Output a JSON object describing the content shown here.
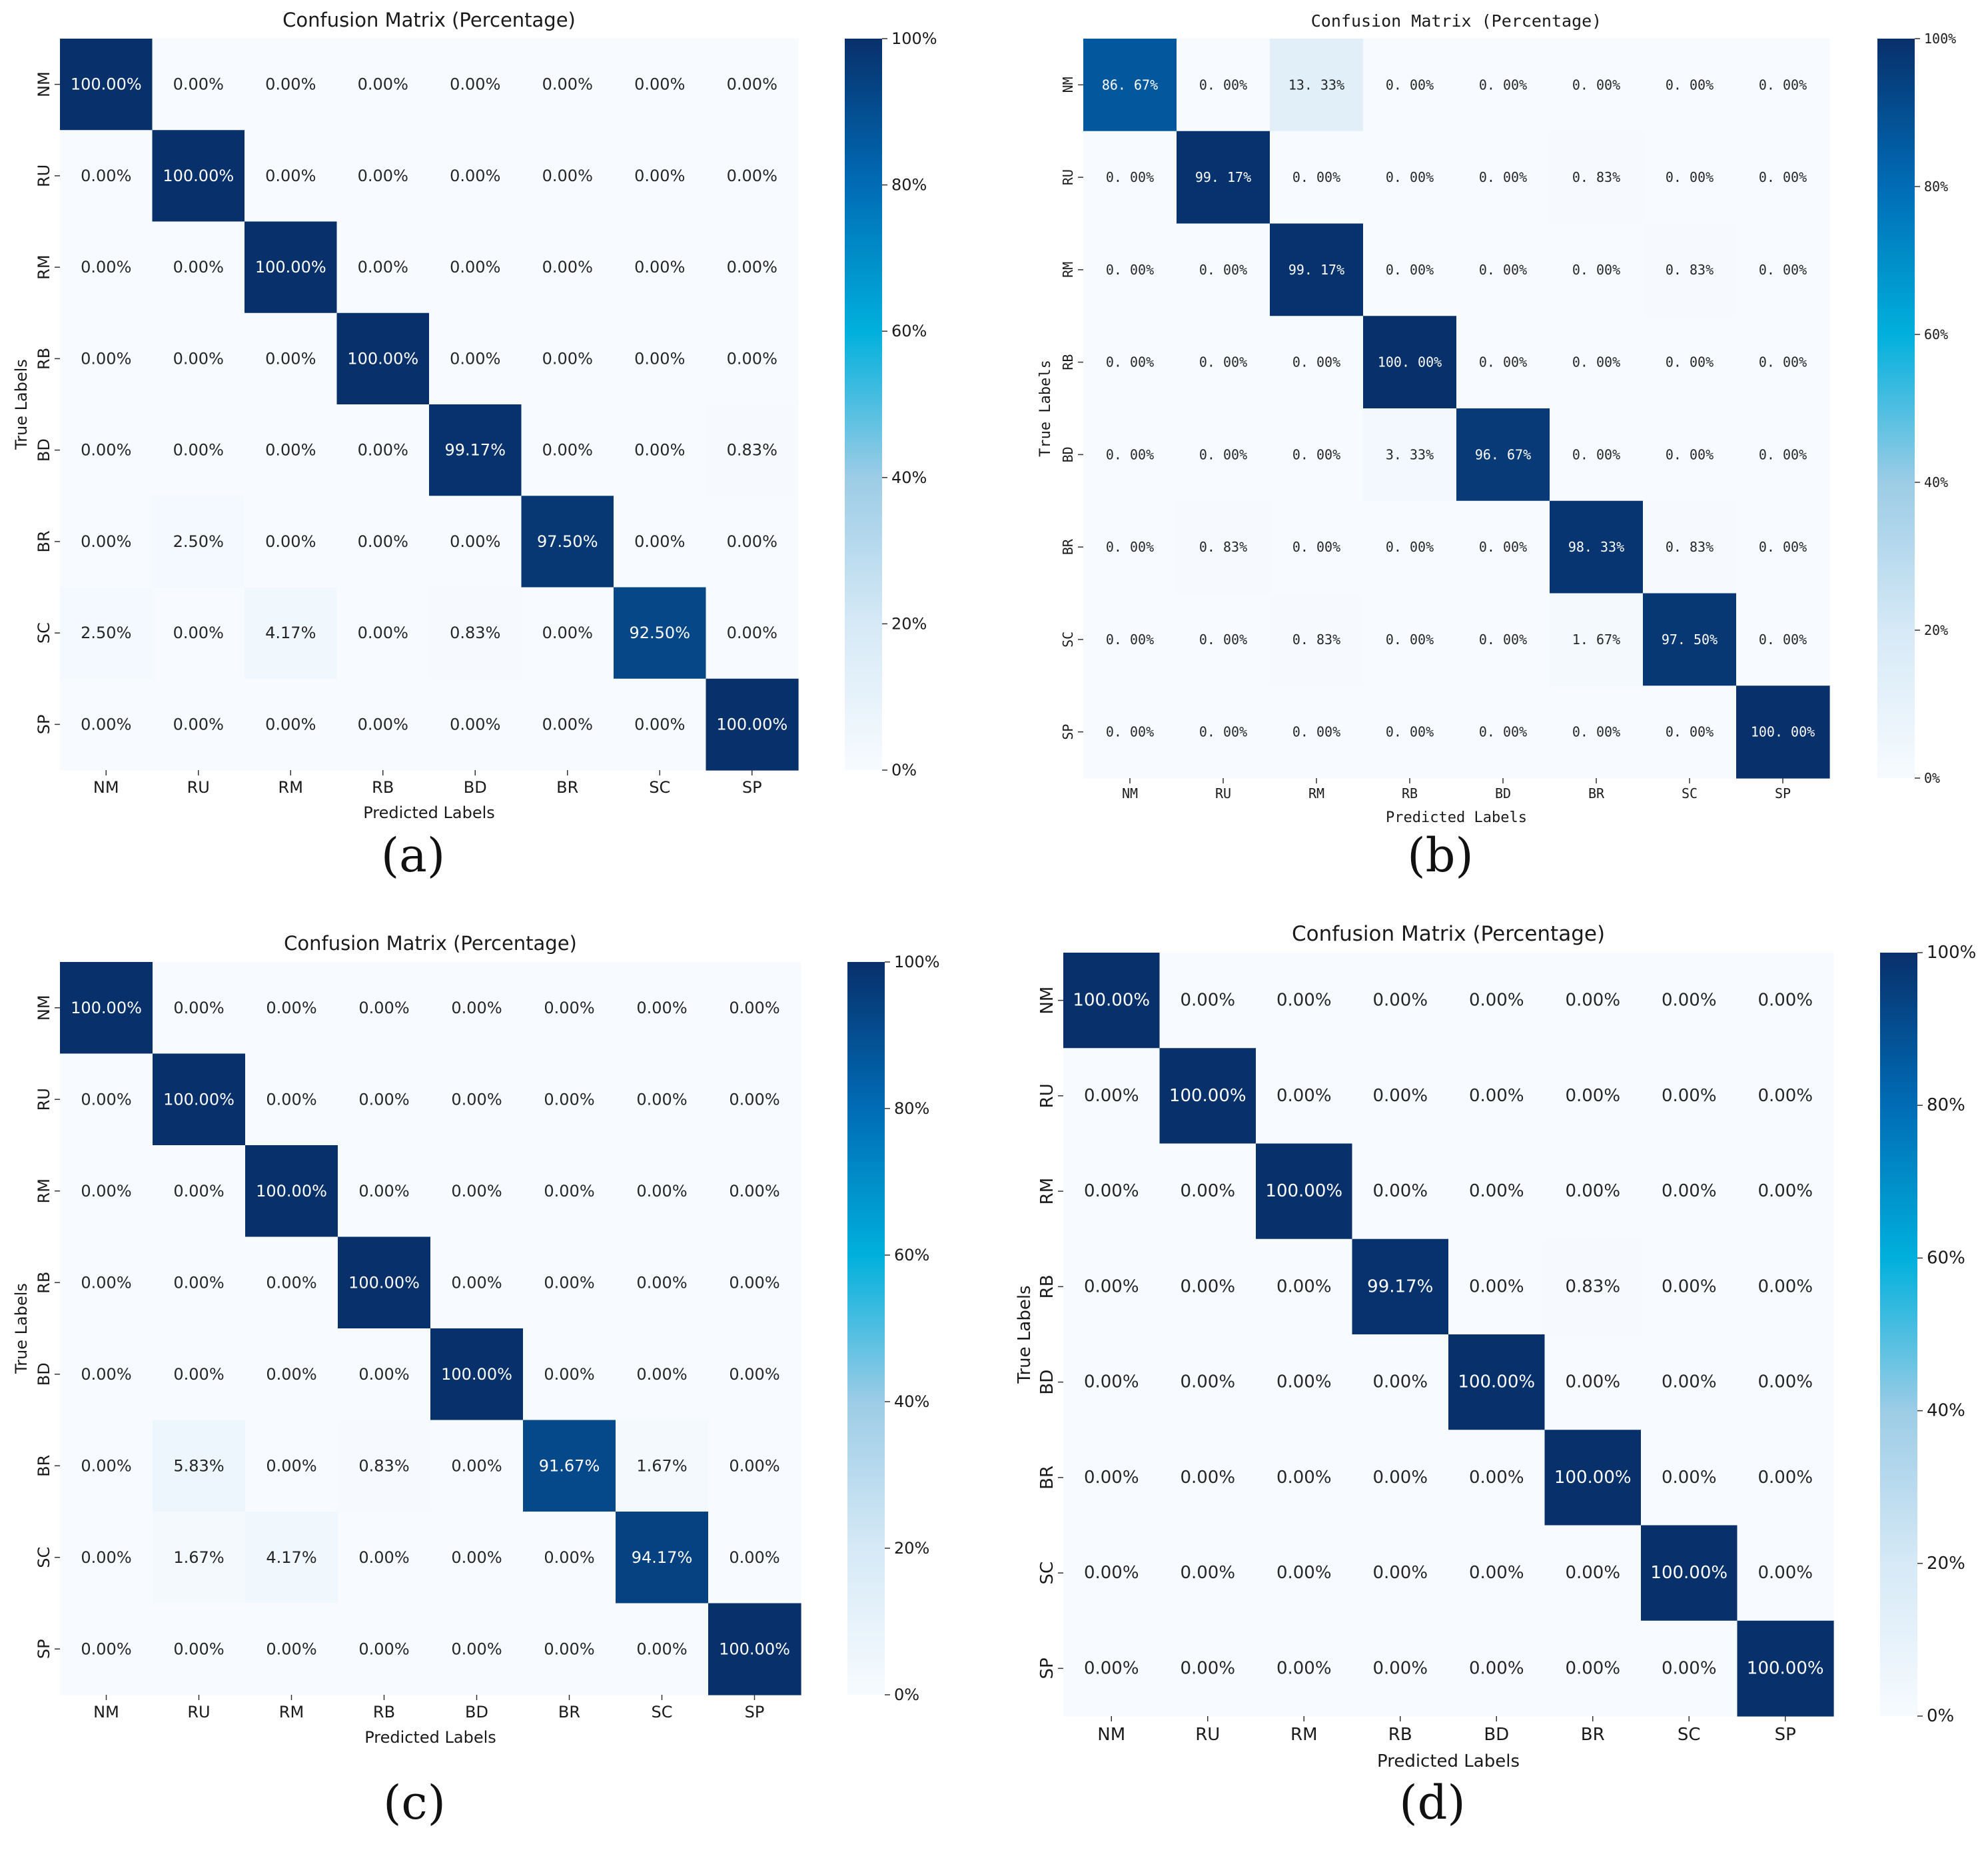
{
  "colors": {
    "cmap": [
      "#f7fbff",
      "#d6e9f6",
      "#9ccce6",
      "#00b0dc",
      "#006cb6",
      "#08306b"
    ],
    "text_dark": "#262626",
    "text_light": "#ffffff"
  },
  "chart_data": [
    {
      "type": "heatmap",
      "panel": "(a)",
      "title": "Confusion Matrix (Percentage)",
      "xlabel": "Predicted Labels",
      "ylabel": "True Labels",
      "x_categories": [
        "NM",
        "RU",
        "RM",
        "RB",
        "BD",
        "BR",
        "SC",
        "SP"
      ],
      "y_categories": [
        "NM",
        "RU",
        "RM",
        "RB",
        "BD",
        "BR",
        "SC",
        "SP"
      ],
      "colorbar": {
        "range": [
          0,
          100
        ],
        "ticks": [
          "0%",
          "20%",
          "40%",
          "60%",
          "80%",
          "100%"
        ]
      },
      "cell_labels": [
        [
          "100.00%",
          "0.00%",
          "0.00%",
          "0.00%",
          "0.00%",
          "0.00%",
          "0.00%",
          "0.00%"
        ],
        [
          "0.00%",
          "100.00%",
          "0.00%",
          "0.00%",
          "0.00%",
          "0.00%",
          "0.00%",
          "0.00%"
        ],
        [
          "0.00%",
          "0.00%",
          "100.00%",
          "0.00%",
          "0.00%",
          "0.00%",
          "0.00%",
          "0.00%"
        ],
        [
          "0.00%",
          "0.00%",
          "0.00%",
          "100.00%",
          "0.00%",
          "0.00%",
          "0.00%",
          "0.00%"
        ],
        [
          "0.00%",
          "0.00%",
          "0.00%",
          "0.00%",
          "99.17%",
          "0.00%",
          "0.00%",
          "0.83%"
        ],
        [
          "0.00%",
          "2.50%",
          "0.00%",
          "0.00%",
          "0.00%",
          "97.50%",
          "0.00%",
          "0.00%"
        ],
        [
          "2.50%",
          "0.00%",
          "4.17%",
          "0.00%",
          "0.83%",
          "0.00%",
          "92.50%",
          "0.00%"
        ],
        [
          "0.00%",
          "0.00%",
          "0.00%",
          "0.00%",
          "0.00%",
          "0.00%",
          "0.00%",
          "100.00%"
        ]
      ]
    },
    {
      "type": "heatmap",
      "panel": "(b)",
      "title": "Confusion Matrix (Percentage)",
      "xlabel": "Predicted Labels",
      "ylabel": "True Labels",
      "x_categories": [
        "NM",
        "RU",
        "RM",
        "RB",
        "BD",
        "BR",
        "SC",
        "SP"
      ],
      "y_categories": [
        "NM",
        "RU",
        "RM",
        "RB",
        "BD",
        "BR",
        "SC",
        "SP"
      ],
      "colorbar": {
        "range": [
          0,
          100
        ],
        "ticks": [
          "0%",
          "20%",
          "40%",
          "60%",
          "80%",
          "100%"
        ]
      },
      "cell_labels": [
        [
          "86. 67%",
          "0. 00%",
          "13. 33%",
          "0. 00%",
          "0. 00%",
          "0. 00%",
          "0. 00%",
          "0. 00%"
        ],
        [
          "0. 00%",
          "99. 17%",
          "0. 00%",
          "0. 00%",
          "0. 00%",
          "0. 83%",
          "0. 00%",
          "0. 00%"
        ],
        [
          "0. 00%",
          "0. 00%",
          "99. 17%",
          "0. 00%",
          "0. 00%",
          "0. 00%",
          "0. 83%",
          "0. 00%"
        ],
        [
          "0. 00%",
          "0. 00%",
          "0. 00%",
          "100. 00%",
          "0. 00%",
          "0. 00%",
          "0. 00%",
          "0. 00%"
        ],
        [
          "0. 00%",
          "0. 00%",
          "0. 00%",
          "3. 33%",
          "96. 67%",
          "0. 00%",
          "0. 00%",
          "0. 00%"
        ],
        [
          "0. 00%",
          "0. 83%",
          "0. 00%",
          "0. 00%",
          "0. 00%",
          "98. 33%",
          "0. 83%",
          "0. 00%"
        ],
        [
          "0. 00%",
          "0. 00%",
          "0. 83%",
          "0. 00%",
          "0. 00%",
          "1. 67%",
          "97. 50%",
          "0. 00%"
        ],
        [
          "0. 00%",
          "0. 00%",
          "0. 00%",
          "0. 00%",
          "0. 00%",
          "0. 00%",
          "0. 00%",
          "100. 00%"
        ]
      ]
    },
    {
      "type": "heatmap",
      "panel": "(c)",
      "title": "Confusion Matrix (Percentage)",
      "xlabel": "Predicted Labels",
      "ylabel": "True Labels",
      "x_categories": [
        "NM",
        "RU",
        "RM",
        "RB",
        "BD",
        "BR",
        "SC",
        "SP"
      ],
      "y_categories": [
        "NM",
        "RU",
        "RM",
        "RB",
        "BD",
        "BR",
        "SC",
        "SP"
      ],
      "colorbar": {
        "range": [
          0,
          100
        ],
        "ticks": [
          "0%",
          "20%",
          "40%",
          "60%",
          "80%",
          "100%"
        ]
      },
      "cell_labels": [
        [
          "100.00%",
          "0.00%",
          "0.00%",
          "0.00%",
          "0.00%",
          "0.00%",
          "0.00%",
          "0.00%"
        ],
        [
          "0.00%",
          "100.00%",
          "0.00%",
          "0.00%",
          "0.00%",
          "0.00%",
          "0.00%",
          "0.00%"
        ],
        [
          "0.00%",
          "0.00%",
          "100.00%",
          "0.00%",
          "0.00%",
          "0.00%",
          "0.00%",
          "0.00%"
        ],
        [
          "0.00%",
          "0.00%",
          "0.00%",
          "100.00%",
          "0.00%",
          "0.00%",
          "0.00%",
          "0.00%"
        ],
        [
          "0.00%",
          "0.00%",
          "0.00%",
          "0.00%",
          "100.00%",
          "0.00%",
          "0.00%",
          "0.00%"
        ],
        [
          "0.00%",
          "5.83%",
          "0.00%",
          "0.83%",
          "0.00%",
          "91.67%",
          "1.67%",
          "0.00%"
        ],
        [
          "0.00%",
          "1.67%",
          "4.17%",
          "0.00%",
          "0.00%",
          "0.00%",
          "94.17%",
          "0.00%"
        ],
        [
          "0.00%",
          "0.00%",
          "0.00%",
          "0.00%",
          "0.00%",
          "0.00%",
          "0.00%",
          "100.00%"
        ]
      ]
    },
    {
      "type": "heatmap",
      "panel": "(d)",
      "title": "Confusion Matrix (Percentage)",
      "xlabel": "Predicted Labels",
      "ylabel": "True Labels",
      "x_categories": [
        "NM",
        "RU",
        "RM",
        "RB",
        "BD",
        "BR",
        "SC",
        "SP"
      ],
      "y_categories": [
        "NM",
        "RU",
        "RM",
        "RB",
        "BD",
        "BR",
        "SC",
        "SP"
      ],
      "colorbar": {
        "range": [
          0,
          100
        ],
        "ticks": [
          "0%",
          "20%",
          "40%",
          "60%",
          "80%",
          "100%"
        ]
      },
      "cell_labels": [
        [
          "100.00%",
          "0.00%",
          "0.00%",
          "0.00%",
          "0.00%",
          "0.00%",
          "0.00%",
          "0.00%"
        ],
        [
          "0.00%",
          "100.00%",
          "0.00%",
          "0.00%",
          "0.00%",
          "0.00%",
          "0.00%",
          "0.00%"
        ],
        [
          "0.00%",
          "0.00%",
          "100.00%",
          "0.00%",
          "0.00%",
          "0.00%",
          "0.00%",
          "0.00%"
        ],
        [
          "0.00%",
          "0.00%",
          "0.00%",
          "99.17%",
          "0.00%",
          "0.83%",
          "0.00%",
          "0.00%"
        ],
        [
          "0.00%",
          "0.00%",
          "0.00%",
          "0.00%",
          "100.00%",
          "0.00%",
          "0.00%",
          "0.00%"
        ],
        [
          "0.00%",
          "0.00%",
          "0.00%",
          "0.00%",
          "0.00%",
          "100.00%",
          "0.00%",
          "0.00%"
        ],
        [
          "0.00%",
          "0.00%",
          "0.00%",
          "0.00%",
          "0.00%",
          "0.00%",
          "100.00%",
          "0.00%"
        ],
        [
          "0.00%",
          "0.00%",
          "0.00%",
          "0.00%",
          "0.00%",
          "0.00%",
          "0.00%",
          "100.00%"
        ]
      ]
    }
  ]
}
